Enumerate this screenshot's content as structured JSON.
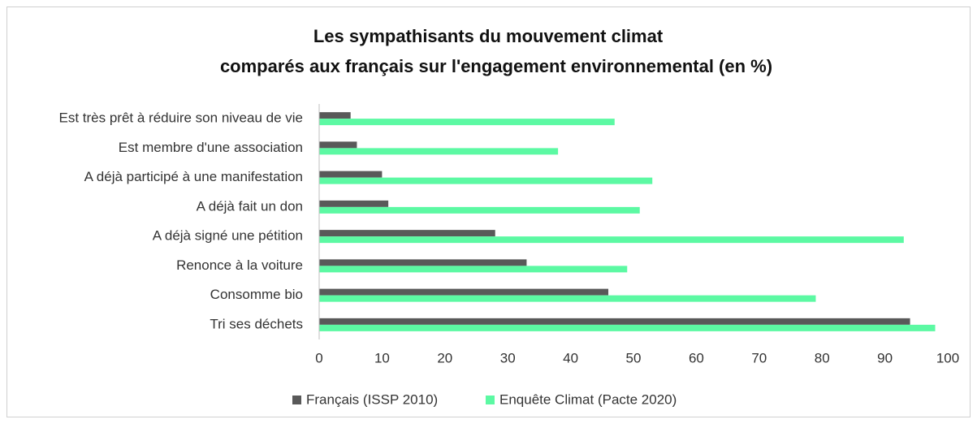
{
  "chart_data": {
    "type": "bar",
    "orientation": "horizontal",
    "title": [
      "Les sympathisants du mouvement climat",
      "comparés aux français sur l'engagement environnemental (en %)"
    ],
    "categories": [
      "Est très prêt à réduire son niveau de vie",
      "Est membre d'une association",
      "A déjà participé à une manifestation",
      "A déjà fait un don",
      "A déjà signé une pétition",
      "Renonce à la voiture",
      "Consomme bio",
      "Tri ses déchets"
    ],
    "series": [
      {
        "name": "Français (ISSP 2010)",
        "color": "#595959",
        "values": [
          5,
          6,
          10,
          11,
          28,
          33,
          46,
          94
        ]
      },
      {
        "name": "Enquête Climat (Pacte 2020)",
        "color": "#5cf9a3",
        "values": [
          47,
          38,
          53,
          51,
          93,
          49,
          79,
          98
        ]
      }
    ],
    "xlim": [
      0,
      100
    ],
    "xticks": [
      0,
      10,
      20,
      30,
      40,
      50,
      60,
      70,
      80,
      90,
      100
    ],
    "grid": false,
    "legend": "bottom"
  }
}
